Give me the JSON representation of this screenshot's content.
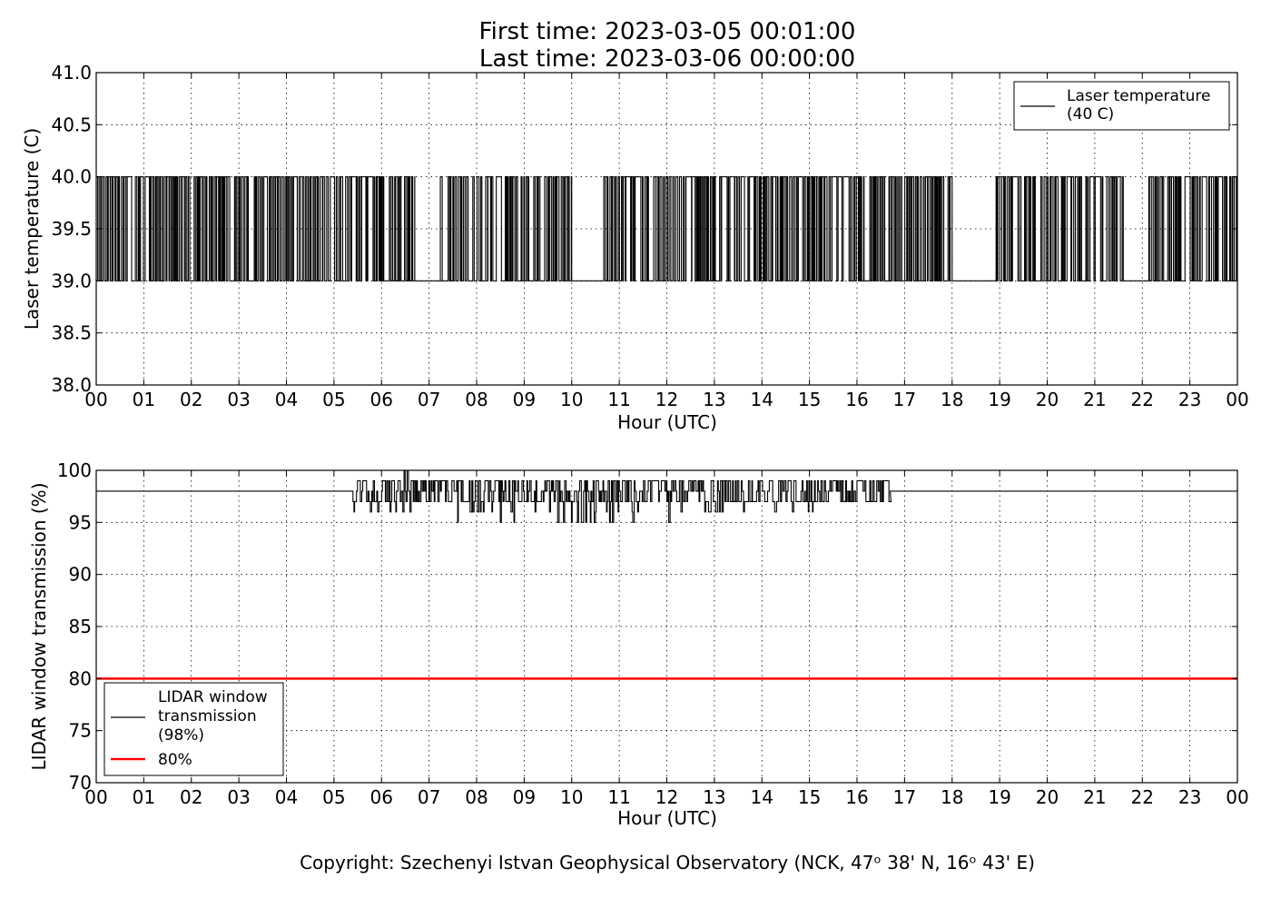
{
  "title": {
    "line1": "First time: 2023-03-05 00:01:00",
    "line2": "Last time: 2023-03-06 00:00:00"
  },
  "copyright": {
    "text": "Copyright: Szechenyi Istvan Geophysical Observatory (NCK, 47ᵒ  38' N, 16ᵒ  43' E)"
  },
  "chart_data": [
    {
      "type": "line",
      "xlabel": "Hour (UTC)",
      "ylabel": "Laser temperature (C)",
      "xlim": [
        0,
        24
      ],
      "ylim": [
        38.0,
        41.0
      ],
      "grid": true,
      "legend_position": "top-right",
      "x_tick_labels": [
        "00",
        "01",
        "02",
        "03",
        "04",
        "05",
        "06",
        "07",
        "08",
        "09",
        "10",
        "11",
        "12",
        "13",
        "14",
        "15",
        "16",
        "17",
        "18",
        "19",
        "20",
        "21",
        "22",
        "23",
        "00"
      ],
      "y_tick_labels": [
        "38.0",
        "38.5",
        "39.0",
        "39.5",
        "40.0",
        "40.5",
        "41.0"
      ],
      "y_ticks": [
        38.0,
        38.5,
        39.0,
        39.5,
        40.0,
        40.5,
        41.0
      ],
      "legend": [
        {
          "label_lines": [
            "Laser temperature",
            "(40 C)"
          ],
          "color": "#000000"
        }
      ],
      "series": [
        {
          "name": "Laser temperature (40 C)",
          "color": "#000000",
          "description_values": [
            39.0,
            40.0
          ],
          "segments": [
            {
              "x_start": 0.0,
              "x_end": 6.7,
              "levels": [
                39.0,
                40.0
              ],
              "switching": "frequent"
            },
            {
              "x_start": 6.7,
              "x_end": 7.2,
              "levels": [
                39.0
              ],
              "switching": "none"
            },
            {
              "x_start": 7.2,
              "x_end": 10.0,
              "levels": [
                39.0,
                40.0
              ],
              "switching": "frequent"
            },
            {
              "x_start": 10.0,
              "x_end": 10.55,
              "levels": [
                39.0
              ],
              "switching": "none"
            },
            {
              "x_start": 10.55,
              "x_end": 18.0,
              "levels": [
                39.0,
                40.0
              ],
              "switching": "frequent"
            },
            {
              "x_start": 18.0,
              "x_end": 18.9,
              "levels": [
                39.0
              ],
              "switching": "none"
            },
            {
              "x_start": 18.9,
              "x_end": 21.6,
              "levels": [
                39.0,
                40.0
              ],
              "switching": "frequent"
            },
            {
              "x_start": 21.6,
              "x_end": 22.1,
              "levels": [
                39.0
              ],
              "switching": "none"
            },
            {
              "x_start": 22.1,
              "x_end": 24.0,
              "levels": [
                39.0,
                40.0
              ],
              "switching": "frequent"
            }
          ]
        }
      ]
    },
    {
      "type": "line",
      "xlabel": "Hour (UTC)",
      "ylabel": "LIDAR window transmission (%)",
      "xlim": [
        0,
        24
      ],
      "ylim": [
        70,
        100
      ],
      "grid": true,
      "legend_position": "bottom-left",
      "x_tick_labels": [
        "00",
        "01",
        "02",
        "03",
        "04",
        "05",
        "06",
        "07",
        "08",
        "09",
        "10",
        "11",
        "12",
        "13",
        "14",
        "15",
        "16",
        "17",
        "18",
        "19",
        "20",
        "21",
        "22",
        "23",
        "00"
      ],
      "y_tick_labels": [
        "70",
        "75",
        "80",
        "85",
        "90",
        "95",
        "100"
      ],
      "y_ticks": [
        70,
        75,
        80,
        85,
        90,
        95,
        100
      ],
      "legend": [
        {
          "label_lines": [
            "LIDAR window",
            "transmission",
            "(98%)"
          ],
          "color": "#000000"
        },
        {
          "label_lines": [
            "80%"
          ],
          "color": "#ff0000"
        }
      ],
      "series": [
        {
          "name": "LIDAR window transmission (98%)",
          "color": "#000000",
          "baseline": 98,
          "noisy_interval": [
            5.4,
            16.7
          ],
          "noisy_range": [
            95,
            100
          ]
        },
        {
          "name": "80%",
          "color": "#ff0000",
          "constant": 80
        }
      ]
    }
  ]
}
